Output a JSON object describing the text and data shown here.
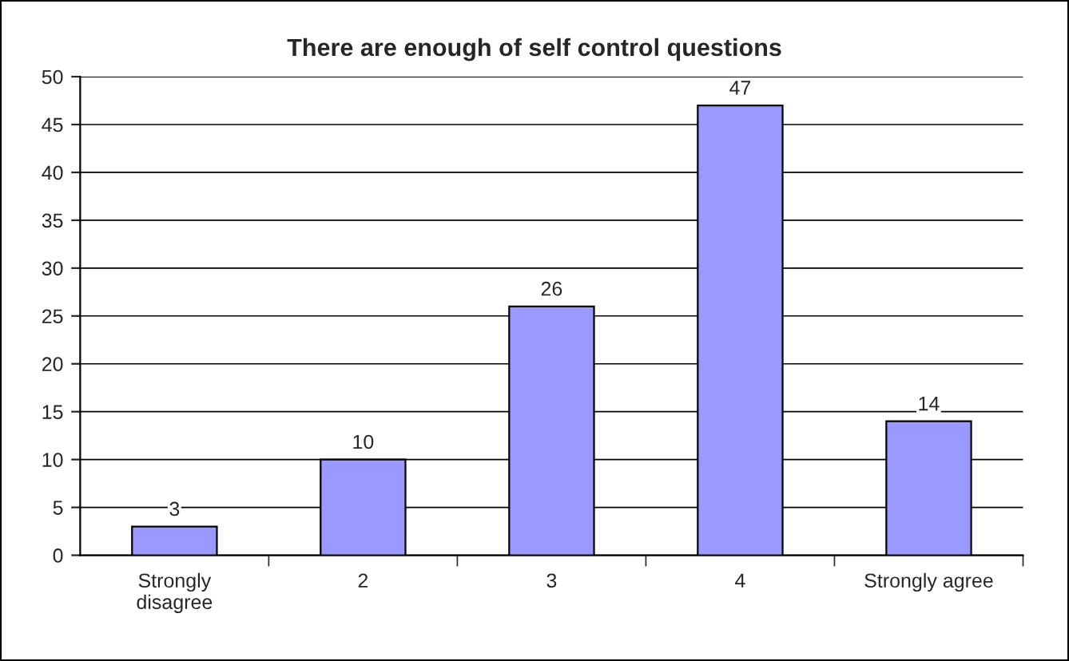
{
  "chart_data": {
    "type": "bar",
    "title": "There are enough of self control questions",
    "categories": [
      "Strongly\ndisagree",
      "2",
      "3",
      "4",
      "Strongly agree"
    ],
    "values": [
      3,
      10,
      26,
      47,
      14
    ],
    "color": "#9999ff",
    "ylim": [
      0,
      50
    ],
    "yticks": [
      0,
      5,
      10,
      15,
      20,
      25,
      30,
      35,
      40,
      45,
      50
    ],
    "grid": "y",
    "data_labels": true
  }
}
